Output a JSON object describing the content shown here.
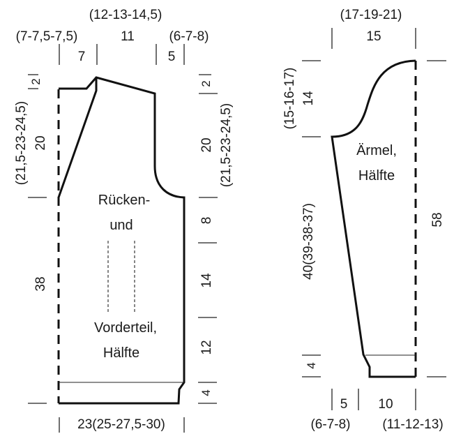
{
  "body_piece": {
    "name_lines": [
      "Rücken-",
      "und",
      "Vorderteil,",
      "Hälfte"
    ],
    "top_width_total": "(12-13-14,5)",
    "top_width_total_base": "11",
    "shoulder_left": "(7-7,5-7,5)",
    "shoulder_left_base": "7",
    "shoulder_right": "(6-7-8)",
    "shoulder_right_base": "5",
    "top_edge_left": "2",
    "top_edge_right": "2",
    "armhole_height_left": "20",
    "armhole_height_left_sizes": "(21,5-23-24,5)",
    "armhole_height_right": "20",
    "armhole_height_right_sizes": "(21,5-23-24,5)",
    "side_height": "38",
    "seg_upper": "8",
    "seg_middle": "14",
    "seg_lower": "12",
    "border": "4",
    "width_bottom": "23(25-27,5-30)"
  },
  "sleeve_piece": {
    "name_lines": [
      "Ärmel,",
      "Hälfte"
    ],
    "top_width": "15",
    "top_width_sizes": "(17-19-21)",
    "cap_height": "14",
    "cap_height_sizes": "(15-16-17)",
    "sleeve_length": "40(39-38-37)",
    "total_length": "58",
    "border": "4",
    "cuff_left": "5",
    "cuff_left_sizes": "(6-7-8)",
    "cuff_right": "10",
    "cuff_right_sizes": "(11-12-13)"
  }
}
